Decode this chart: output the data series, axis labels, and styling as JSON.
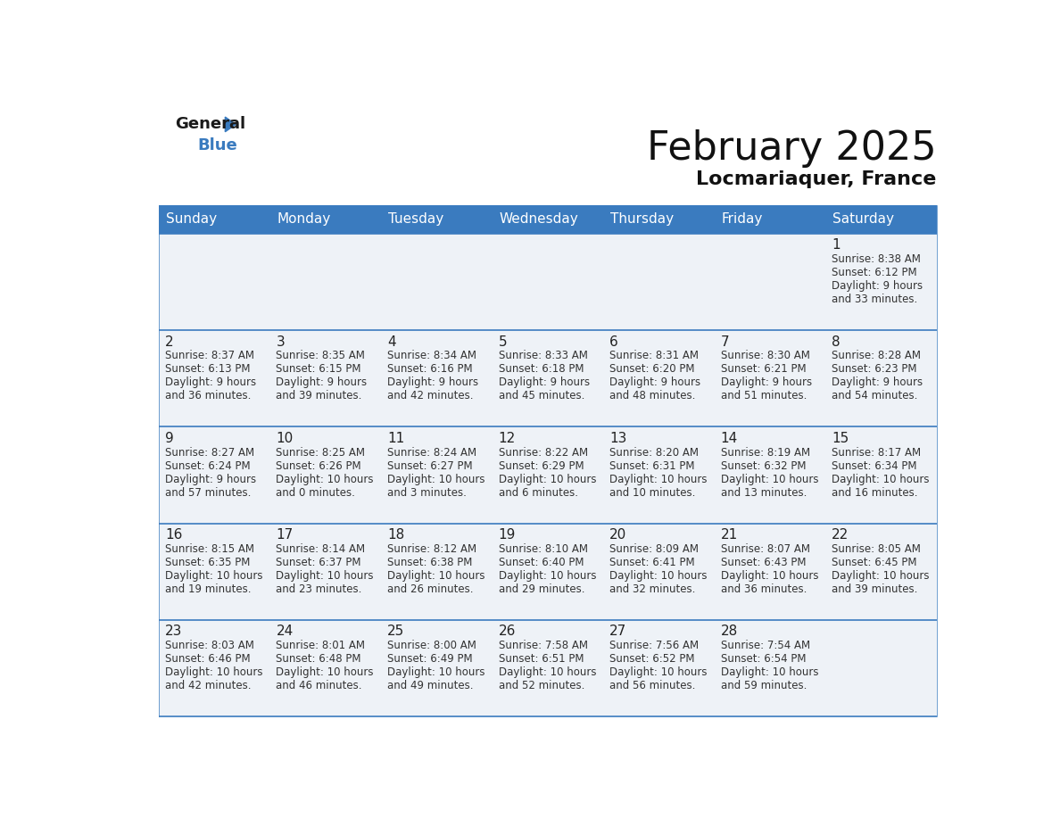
{
  "title": "February 2025",
  "subtitle": "Locmariaquer, France",
  "header_bg_color": "#3a7bbf",
  "header_text_color": "#ffffff",
  "cell_bg_color": "#eef2f7",
  "day_number_color": "#222222",
  "info_text_color": "#333333",
  "border_color": "#3a7bbf",
  "days_of_week": [
    "Sunday",
    "Monday",
    "Tuesday",
    "Wednesday",
    "Thursday",
    "Friday",
    "Saturday"
  ],
  "calendar_data": [
    [
      null,
      null,
      null,
      null,
      null,
      null,
      {
        "day": 1,
        "sunrise": "8:38 AM",
        "sunset": "6:12 PM",
        "daylight": "9 hours and 33 minutes."
      }
    ],
    [
      {
        "day": 2,
        "sunrise": "8:37 AM",
        "sunset": "6:13 PM",
        "daylight": "9 hours and 36 minutes."
      },
      {
        "day": 3,
        "sunrise": "8:35 AM",
        "sunset": "6:15 PM",
        "daylight": "9 hours and 39 minutes."
      },
      {
        "day": 4,
        "sunrise": "8:34 AM",
        "sunset": "6:16 PM",
        "daylight": "9 hours and 42 minutes."
      },
      {
        "day": 5,
        "sunrise": "8:33 AM",
        "sunset": "6:18 PM",
        "daylight": "9 hours and 45 minutes."
      },
      {
        "day": 6,
        "sunrise": "8:31 AM",
        "sunset": "6:20 PM",
        "daylight": "9 hours and 48 minutes."
      },
      {
        "day": 7,
        "sunrise": "8:30 AM",
        "sunset": "6:21 PM",
        "daylight": "9 hours and 51 minutes."
      },
      {
        "day": 8,
        "sunrise": "8:28 AM",
        "sunset": "6:23 PM",
        "daylight": "9 hours and 54 minutes."
      }
    ],
    [
      {
        "day": 9,
        "sunrise": "8:27 AM",
        "sunset": "6:24 PM",
        "daylight": "9 hours and 57 minutes."
      },
      {
        "day": 10,
        "sunrise": "8:25 AM",
        "sunset": "6:26 PM",
        "daylight": "10 hours and 0 minutes."
      },
      {
        "day": 11,
        "sunrise": "8:24 AM",
        "sunset": "6:27 PM",
        "daylight": "10 hours and 3 minutes."
      },
      {
        "day": 12,
        "sunrise": "8:22 AM",
        "sunset": "6:29 PM",
        "daylight": "10 hours and 6 minutes."
      },
      {
        "day": 13,
        "sunrise": "8:20 AM",
        "sunset": "6:31 PM",
        "daylight": "10 hours and 10 minutes."
      },
      {
        "day": 14,
        "sunrise": "8:19 AM",
        "sunset": "6:32 PM",
        "daylight": "10 hours and 13 minutes."
      },
      {
        "day": 15,
        "sunrise": "8:17 AM",
        "sunset": "6:34 PM",
        "daylight": "10 hours and 16 minutes."
      }
    ],
    [
      {
        "day": 16,
        "sunrise": "8:15 AM",
        "sunset": "6:35 PM",
        "daylight": "10 hours and 19 minutes."
      },
      {
        "day": 17,
        "sunrise": "8:14 AM",
        "sunset": "6:37 PM",
        "daylight": "10 hours and 23 minutes."
      },
      {
        "day": 18,
        "sunrise": "8:12 AM",
        "sunset": "6:38 PM",
        "daylight": "10 hours and 26 minutes."
      },
      {
        "day": 19,
        "sunrise": "8:10 AM",
        "sunset": "6:40 PM",
        "daylight": "10 hours and 29 minutes."
      },
      {
        "day": 20,
        "sunrise": "8:09 AM",
        "sunset": "6:41 PM",
        "daylight": "10 hours and 32 minutes."
      },
      {
        "day": 21,
        "sunrise": "8:07 AM",
        "sunset": "6:43 PM",
        "daylight": "10 hours and 36 minutes."
      },
      {
        "day": 22,
        "sunrise": "8:05 AM",
        "sunset": "6:45 PM",
        "daylight": "10 hours and 39 minutes."
      }
    ],
    [
      {
        "day": 23,
        "sunrise": "8:03 AM",
        "sunset": "6:46 PM",
        "daylight": "10 hours and 42 minutes."
      },
      {
        "day": 24,
        "sunrise": "8:01 AM",
        "sunset": "6:48 PM",
        "daylight": "10 hours and 46 minutes."
      },
      {
        "day": 25,
        "sunrise": "8:00 AM",
        "sunset": "6:49 PM",
        "daylight": "10 hours and 49 minutes."
      },
      {
        "day": 26,
        "sunrise": "7:58 AM",
        "sunset": "6:51 PM",
        "daylight": "10 hours and 52 minutes."
      },
      {
        "day": 27,
        "sunrise": "7:56 AM",
        "sunset": "6:52 PM",
        "daylight": "10 hours and 56 minutes."
      },
      {
        "day": 28,
        "sunrise": "7:54 AM",
        "sunset": "6:54 PM",
        "daylight": "10 hours and 59 minutes."
      },
      null
    ]
  ],
  "logo_general_color": "#1a1a1a",
  "logo_blue_color": "#3a7bbf",
  "logo_triangle_color": "#3a7bbf",
  "title_fontsize": 32,
  "subtitle_fontsize": 16,
  "header_fontsize": 11,
  "day_num_fontsize": 11,
  "info_fontsize": 8.5
}
